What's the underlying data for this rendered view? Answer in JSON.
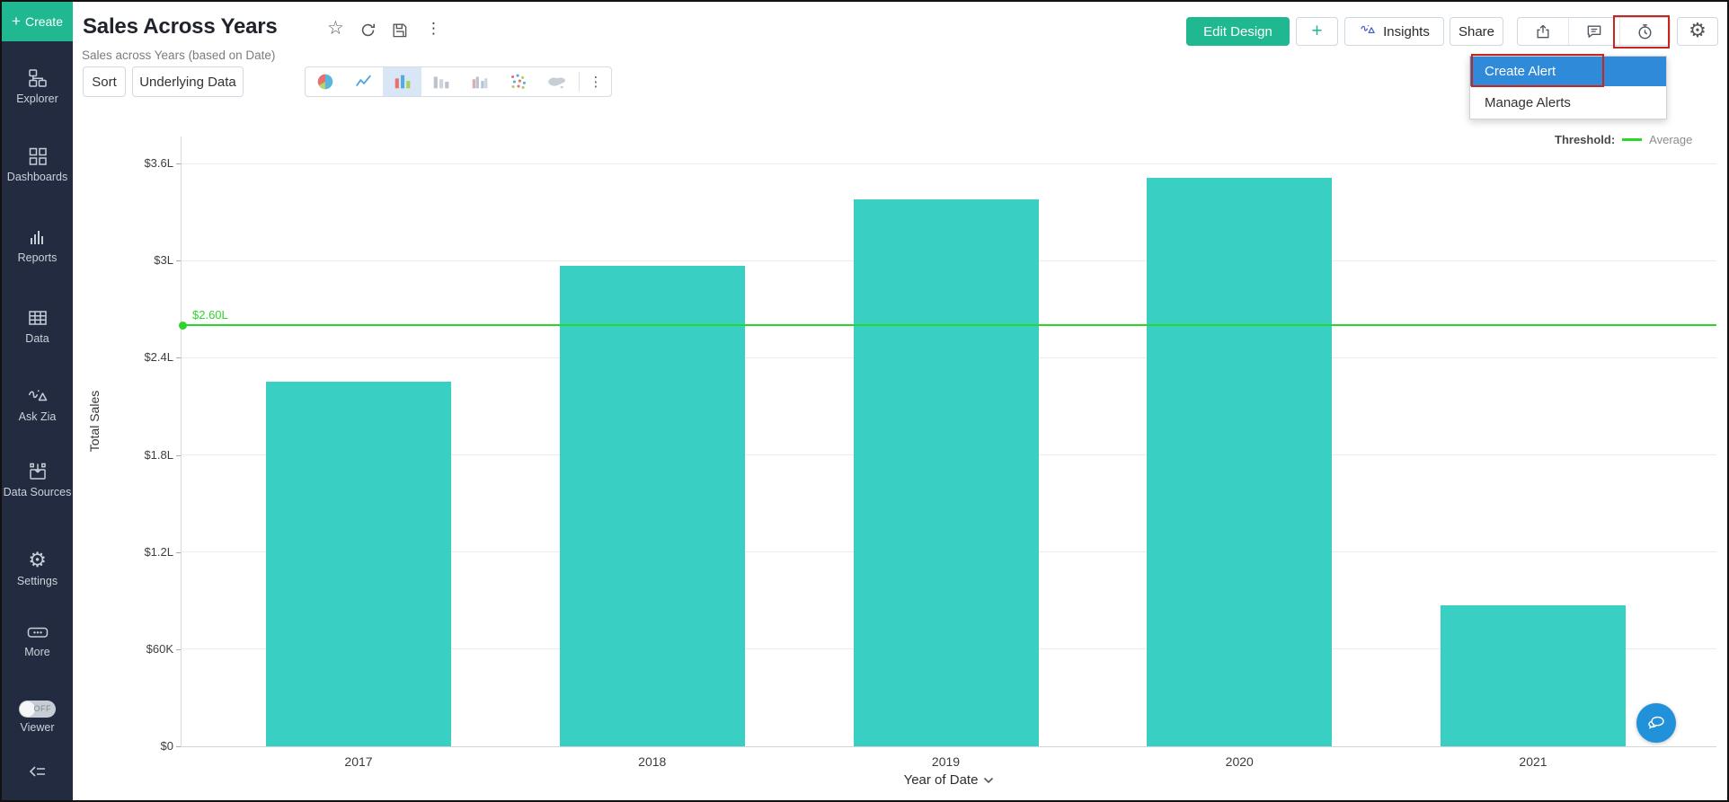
{
  "sidebar": {
    "create_label": "Create",
    "items": [
      {
        "label": "Explorer"
      },
      {
        "label": "Dashboards"
      },
      {
        "label": "Reports"
      },
      {
        "label": "Data"
      },
      {
        "label": "Ask Zia"
      },
      {
        "label": "Data Sources"
      },
      {
        "label": "Settings"
      },
      {
        "label": "More"
      }
    ],
    "viewer": {
      "label": "Viewer",
      "toggle_state": "OFF"
    }
  },
  "header": {
    "title": "Sales Across Years",
    "subtitle": "Sales across Years (based on Date)",
    "edit_design_label": "Edit Design",
    "add_label": "+",
    "insights_label": "Insights",
    "share_label": "Share"
  },
  "toolbar": {
    "sort_label": "Sort",
    "underlying_data_label": "Underlying Data"
  },
  "alert_menu": {
    "items": [
      {
        "label": "Create Alert",
        "highlighted": true
      },
      {
        "label": "Manage Alerts",
        "highlighted": false
      }
    ]
  },
  "chart_data": {
    "type": "bar",
    "categories": [
      "2017",
      "2018",
      "2019",
      "2020",
      "2021"
    ],
    "values": [
      225000,
      297000,
      338000,
      351000,
      87000
    ],
    "xlabel": "Year of Date",
    "ylabel": "Total Sales",
    "ylim": [
      0,
      360000
    ],
    "yticks": [
      {
        "value": 0,
        "label": "$0"
      },
      {
        "value": 60000,
        "label": "$60K"
      },
      {
        "value": 120000,
        "label": "$1.2L"
      },
      {
        "value": 180000,
        "label": "$1.8L"
      },
      {
        "value": 240000,
        "label": "$2.4L"
      },
      {
        "value": 300000,
        "label": "$3L"
      },
      {
        "value": 360000,
        "label": "$3.6L"
      }
    ],
    "grid": true,
    "bar_color": "#3acfc3",
    "threshold": {
      "value": 260000,
      "label": "$2.60L",
      "color": "#2bd62b",
      "legend_title": "Threshold:",
      "legend_name": "Average",
      "legend_position": "top-right"
    }
  },
  "colors": {
    "accent_teal": "#1fb890",
    "bar_teal": "#3acfc3",
    "threshold_green": "#2bd62b",
    "selected_blue": "#2f8bd9",
    "annotation_red": "#c9251d",
    "sidebar_bg": "#222b40",
    "chat_blue": "#2191d9"
  }
}
